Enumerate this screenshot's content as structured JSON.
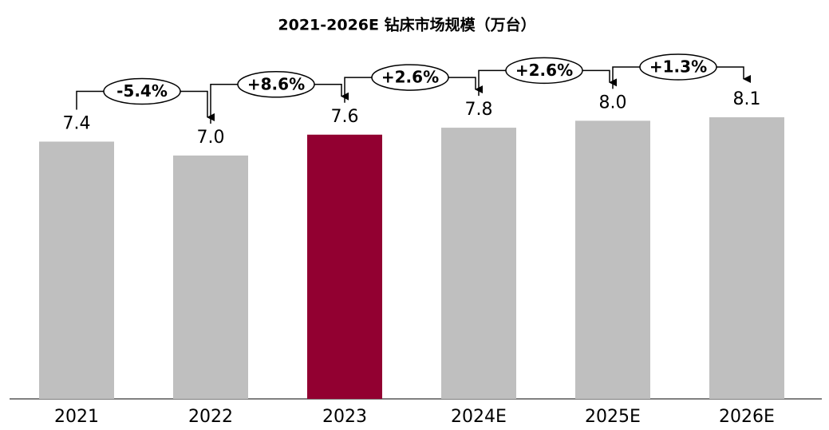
{
  "chart_data": {
    "type": "bar",
    "title": "2021-2026E 钻床市场规模（万台）",
    "categories": [
      "2021",
      "2022",
      "2023",
      "2024E",
      "2025E",
      "2026E"
    ],
    "values": [
      7.4,
      7.0,
      7.6,
      7.8,
      8.0,
      8.1
    ],
    "value_labels": [
      "7.4",
      "7.0",
      "7.6",
      "7.8",
      "8.0",
      "8.1"
    ],
    "colors": [
      "#bfbfbf",
      "#bfbfbf",
      "#920031",
      "#bfbfbf",
      "#bfbfbf",
      "#bfbfbf"
    ],
    "annotations": [
      "-5.4%",
      "+8.6%",
      "+2.6%",
      "+2.6%",
      "+1.3%"
    ]
  }
}
